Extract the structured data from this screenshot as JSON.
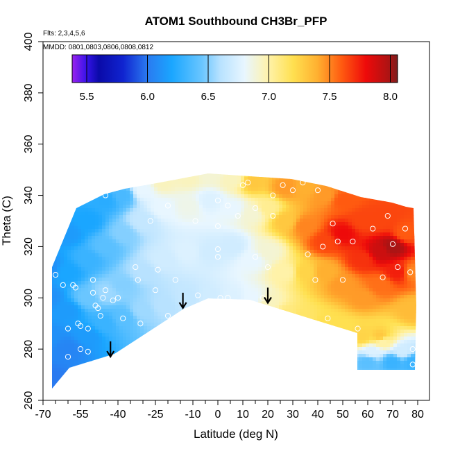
{
  "chart_data": {
    "type": "heatmap",
    "title": "ATOM1 Southbound CH3Br_PFP",
    "xlabel": "Latitude (deg N)",
    "ylabel": "Theta (C)",
    "xlim": [
      -70,
      80
    ],
    "ylim": [
      260,
      400
    ],
    "x_major_ticks": [
      -70,
      -55,
      -40,
      -25,
      -10,
      0,
      10,
      20,
      30,
      40,
      50,
      60,
      70,
      80
    ],
    "x_minor_ticks": [
      -65,
      -60,
      -50,
      -45,
      -35,
      -30,
      -20,
      -15,
      -5,
      5,
      15,
      25,
      35,
      45,
      55,
      65,
      75
    ],
    "y_ticks": [
      260,
      280,
      300,
      320,
      340,
      360,
      380,
      400
    ],
    "annotations": [
      "Flts: 2,3,4,5,6",
      "MMDD: 0801,0803,0806,0808,0812"
    ],
    "colorbar": {
      "range": [
        5.38,
        8.06
      ],
      "ticks": [
        5.5,
        6.0,
        6.5,
        7.0,
        7.5,
        8.0
      ],
      "tick_labels": [
        "5.5",
        "6.0",
        "6.5",
        "7.0",
        "7.5",
        "8.0"
      ],
      "gradient": [
        [
          5.38,
          "#9a22ee"
        ],
        [
          5.5,
          "#3512e8"
        ],
        [
          5.6,
          "#0a0aa8"
        ],
        [
          5.8,
          "#1024d0"
        ],
        [
          6.0,
          "#2a7af0"
        ],
        [
          6.2,
          "#1aa6ff"
        ],
        [
          6.45,
          "#6ac6ff"
        ],
        [
          6.6,
          "#b8e2ff"
        ],
        [
          6.8,
          "#e8f6ff"
        ],
        [
          7.0,
          "#fff2a8"
        ],
        [
          7.2,
          "#ffe050"
        ],
        [
          7.4,
          "#ffb030"
        ],
        [
          7.6,
          "#ff5a10"
        ],
        [
          7.8,
          "#ee0a0a"
        ],
        [
          8.0,
          "#a81414"
        ],
        [
          8.06,
          "#7a1e1e"
        ]
      ]
    },
    "arrows": [
      {
        "lat": -43,
        "theta": 283
      },
      {
        "lat": -14,
        "theta": 302
      },
      {
        "lat": 20,
        "theta": 304
      }
    ],
    "field_points": [
      {
        "lat": -68,
        "theta": 268,
        "value": 6.0
      },
      {
        "lat": -68,
        "theta": 285,
        "value": 6.1
      },
      {
        "lat": -68,
        "theta": 300,
        "value": 6.1
      },
      {
        "lat": -68,
        "theta": 312,
        "value": 6.1
      },
      {
        "lat": -60,
        "theta": 280,
        "value": 6.05
      },
      {
        "lat": -60,
        "theta": 295,
        "value": 6.15
      },
      {
        "lat": -60,
        "theta": 310,
        "value": 6.2
      },
      {
        "lat": -60,
        "theta": 325,
        "value": 6.15
      },
      {
        "lat": -52,
        "theta": 285,
        "value": 6.15
      },
      {
        "lat": -52,
        "theta": 300,
        "value": 6.45
      },
      {
        "lat": -52,
        "theta": 315,
        "value": 6.3
      },
      {
        "lat": -52,
        "theta": 330,
        "value": 6.2
      },
      {
        "lat": -45,
        "theta": 290,
        "value": 6.3
      },
      {
        "lat": -45,
        "theta": 302,
        "value": 6.55
      },
      {
        "lat": -45,
        "theta": 320,
        "value": 6.4
      },
      {
        "lat": -45,
        "theta": 338,
        "value": 6.25
      },
      {
        "lat": -38,
        "theta": 292,
        "value": 6.4
      },
      {
        "lat": -38,
        "theta": 305,
        "value": 6.5
      },
      {
        "lat": -38,
        "theta": 325,
        "value": 6.5
      },
      {
        "lat": -38,
        "theta": 340,
        "value": 6.35
      },
      {
        "lat": -30,
        "theta": 295,
        "value": 6.55
      },
      {
        "lat": -30,
        "theta": 310,
        "value": 6.6
      },
      {
        "lat": -30,
        "theta": 330,
        "value": 6.65
      },
      {
        "lat": -30,
        "theta": 342,
        "value": 6.8
      },
      {
        "lat": -22,
        "theta": 297,
        "value": 6.6
      },
      {
        "lat": -22,
        "theta": 315,
        "value": 6.7
      },
      {
        "lat": -22,
        "theta": 335,
        "value": 6.8
      },
      {
        "lat": -22,
        "theta": 345,
        "value": 6.95
      },
      {
        "lat": -12,
        "theta": 300,
        "value": 6.65
      },
      {
        "lat": -12,
        "theta": 318,
        "value": 6.75
      },
      {
        "lat": -12,
        "theta": 336,
        "value": 6.85
      },
      {
        "lat": -12,
        "theta": 347,
        "value": 6.95
      },
      {
        "lat": -3,
        "theta": 300,
        "value": 6.7
      },
      {
        "lat": -3,
        "theta": 318,
        "value": 6.7
      },
      {
        "lat": -3,
        "theta": 338,
        "value": 6.75
      },
      {
        "lat": -3,
        "theta": 348,
        "value": 6.9
      },
      {
        "lat": 6,
        "theta": 300,
        "value": 6.75
      },
      {
        "lat": 6,
        "theta": 320,
        "value": 6.7
      },
      {
        "lat": 6,
        "theta": 335,
        "value": 6.8
      },
      {
        "lat": 6,
        "theta": 346,
        "value": 6.95
      },
      {
        "lat": 14,
        "theta": 300,
        "value": 6.8
      },
      {
        "lat": 14,
        "theta": 315,
        "value": 6.8
      },
      {
        "lat": 14,
        "theta": 333,
        "value": 6.9
      },
      {
        "lat": 14,
        "theta": 345,
        "value": 7.3
      },
      {
        "lat": 20,
        "theta": 298,
        "value": 6.95
      },
      {
        "lat": 20,
        "theta": 318,
        "value": 6.9
      },
      {
        "lat": 20,
        "theta": 335,
        "value": 7.05
      },
      {
        "lat": 27,
        "theta": 293,
        "value": 7.1
      },
      {
        "lat": 27,
        "theta": 310,
        "value": 7.0
      },
      {
        "lat": 27,
        "theta": 330,
        "value": 7.3
      },
      {
        "lat": 27,
        "theta": 343,
        "value": 7.45
      },
      {
        "lat": 35,
        "theta": 292,
        "value": 7.15
      },
      {
        "lat": 35,
        "theta": 310,
        "value": 7.25
      },
      {
        "lat": 35,
        "theta": 328,
        "value": 7.5
      },
      {
        "lat": 35,
        "theta": 343,
        "value": 7.4
      },
      {
        "lat": 43,
        "theta": 290,
        "value": 7.2
      },
      {
        "lat": 43,
        "theta": 310,
        "value": 7.4
      },
      {
        "lat": 43,
        "theta": 322,
        "value": 7.65
      },
      {
        "lat": 43,
        "theta": 340,
        "value": 7.45
      },
      {
        "lat": 50,
        "theta": 288,
        "value": 7.2
      },
      {
        "lat": 50,
        "theta": 305,
        "value": 7.45
      },
      {
        "lat": 50,
        "theta": 325,
        "value": 7.8
      },
      {
        "lat": 50,
        "theta": 338,
        "value": 7.6
      },
      {
        "lat": 58,
        "theta": 285,
        "value": 7.25
      },
      {
        "lat": 58,
        "theta": 300,
        "value": 7.45
      },
      {
        "lat": 58,
        "theta": 315,
        "value": 7.7
      },
      {
        "lat": 58,
        "theta": 330,
        "value": 7.65
      },
      {
        "lat": 65,
        "theta": 285,
        "value": 7.3
      },
      {
        "lat": 65,
        "theta": 305,
        "value": 7.55
      },
      {
        "lat": 65,
        "theta": 318,
        "value": 7.9
      },
      {
        "lat": 65,
        "theta": 330,
        "value": 7.65
      },
      {
        "lat": 70,
        "theta": 320,
        "value": 8.0
      },
      {
        "lat": 72,
        "theta": 310,
        "value": 7.75
      },
      {
        "lat": 75,
        "theta": 325,
        "value": 7.6
      },
      {
        "lat": 78,
        "theta": 295,
        "value": 7.35
      },
      {
        "lat": 78,
        "theta": 310,
        "value": 7.5
      },
      {
        "lat": 60,
        "theta": 275,
        "value": 6.4
      },
      {
        "lat": 70,
        "theta": 275,
        "value": 6.3
      },
      {
        "lat": 78,
        "theta": 275,
        "value": 6.3
      },
      {
        "lat": 62,
        "theta": 279,
        "value": 6.75
      },
      {
        "lat": 74,
        "theta": 279,
        "value": 6.7
      },
      {
        "lat": 66,
        "theta": 283,
        "value": 7.0
      }
    ],
    "samples": [
      {
        "lat": -68,
        "theta": 266
      },
      {
        "lat": -68,
        "theta": 287
      },
      {
        "lat": -68,
        "theta": 312
      },
      {
        "lat": -68,
        "theta": 314
      },
      {
        "lat": -65,
        "theta": 309
      },
      {
        "lat": -62,
        "theta": 305
      },
      {
        "lat": -60,
        "theta": 288
      },
      {
        "lat": -60,
        "theta": 277
      },
      {
        "lat": -58,
        "theta": 305
      },
      {
        "lat": -57,
        "theta": 304
      },
      {
        "lat": -56,
        "theta": 290
      },
      {
        "lat": -55,
        "theta": 289
      },
      {
        "lat": -55,
        "theta": 280
      },
      {
        "lat": -52,
        "theta": 279
      },
      {
        "lat": -52,
        "theta": 288
      },
      {
        "lat": -50,
        "theta": 307
      },
      {
        "lat": -50,
        "theta": 302
      },
      {
        "lat": -49,
        "theta": 297
      },
      {
        "lat": -48,
        "theta": 296
      },
      {
        "lat": -47,
        "theta": 293
      },
      {
        "lat": -46,
        "theta": 300
      },
      {
        "lat": -45,
        "theta": 303
      },
      {
        "lat": -45,
        "theta": 340
      },
      {
        "lat": -42,
        "theta": 299
      },
      {
        "lat": -40,
        "theta": 300
      },
      {
        "lat": -38,
        "theta": 292
      },
      {
        "lat": -33,
        "theta": 312
      },
      {
        "lat": -32,
        "theta": 307
      },
      {
        "lat": -31,
        "theta": 290
      },
      {
        "lat": -27,
        "theta": 330
      },
      {
        "lat": -25,
        "theta": 303
      },
      {
        "lat": -24,
        "theta": 311
      },
      {
        "lat": -20,
        "theta": 336
      },
      {
        "lat": -20,
        "theta": 293
      },
      {
        "lat": -17,
        "theta": 307
      },
      {
        "lat": -9,
        "theta": 330
      },
      {
        "lat": -8,
        "theta": 301
      },
      {
        "lat": 0,
        "theta": 338
      },
      {
        "lat": 0,
        "theta": 328
      },
      {
        "lat": 0,
        "theta": 319
      },
      {
        "lat": 0,
        "theta": 316
      },
      {
        "lat": 1,
        "theta": 300
      },
      {
        "lat": 4,
        "theta": 336
      },
      {
        "lat": 4,
        "theta": 300
      },
      {
        "lat": 8,
        "theta": 332
      },
      {
        "lat": 10,
        "theta": 344
      },
      {
        "lat": 12,
        "theta": 345
      },
      {
        "lat": 15,
        "theta": 335
      },
      {
        "lat": 15,
        "theta": 316
      },
      {
        "lat": 18,
        "theta": 300
      },
      {
        "lat": 20,
        "theta": 312
      },
      {
        "lat": 22,
        "theta": 332
      },
      {
        "lat": 22,
        "theta": 340
      },
      {
        "lat": 26,
        "theta": 344
      },
      {
        "lat": 30,
        "theta": 342
      },
      {
        "lat": 34,
        "theta": 345
      },
      {
        "lat": 36,
        "theta": 317
      },
      {
        "lat": 39,
        "theta": 307
      },
      {
        "lat": 40,
        "theta": 342
      },
      {
        "lat": 42,
        "theta": 320
      },
      {
        "lat": 44,
        "theta": 292
      },
      {
        "lat": 46,
        "theta": 329
      },
      {
        "lat": 48,
        "theta": 322
      },
      {
        "lat": 50,
        "theta": 307
      },
      {
        "lat": 54,
        "theta": 322
      },
      {
        "lat": 56,
        "theta": 288
      },
      {
        "lat": 62,
        "theta": 327
      },
      {
        "lat": 66,
        "theta": 308
      },
      {
        "lat": 68,
        "theta": 332
      },
      {
        "lat": 70,
        "theta": 321
      },
      {
        "lat": 72,
        "theta": 312
      },
      {
        "lat": 75,
        "theta": 327
      },
      {
        "lat": 77,
        "theta": 310
      },
      {
        "lat": 78,
        "theta": 280
      },
      {
        "lat": 78,
        "theta": 274
      }
    ]
  }
}
